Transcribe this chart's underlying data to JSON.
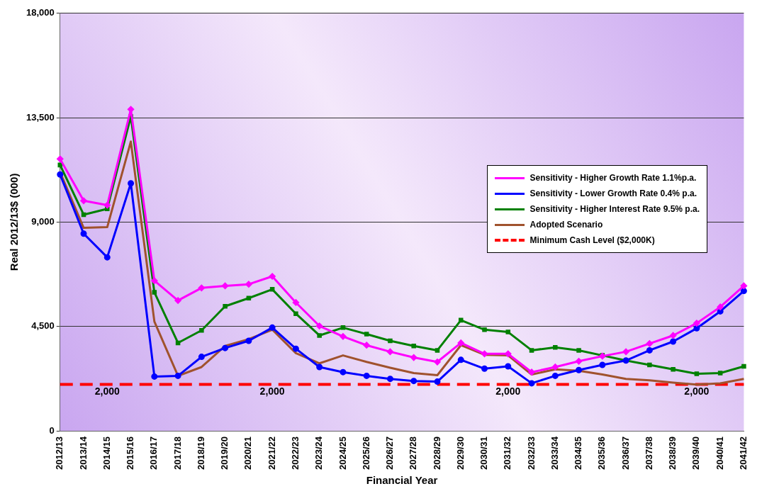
{
  "chart_data": {
    "type": "line",
    "xlabel": "Financial Year",
    "ylabel": "Real 2012/13$ (000)",
    "categories": [
      "2012/13",
      "2013/14",
      "2014/15",
      "2015/16",
      "2016/17",
      "2017/18",
      "2018/19",
      "2019/20",
      "2020/21",
      "2021/22",
      "2022/23",
      "2023/24",
      "2024/25",
      "2025/26",
      "2026/27",
      "2027/28",
      "2028/29",
      "2029/30",
      "2030/31",
      "2031/32",
      "2032/33",
      "2033/34",
      "2034/35",
      "2035/36",
      "2036/37",
      "2037/38",
      "2038/39",
      "2039/40",
      "2040/41",
      "2041/42"
    ],
    "series": [
      {
        "name": "Sensitivity - Higher Growth Rate 1.1%p.a.",
        "color": "#ff00ff",
        "marker": "diamond",
        "values": [
          11720,
          9920,
          9730,
          13860,
          6470,
          5620,
          6160,
          6250,
          6320,
          6660,
          5530,
          4520,
          4070,
          3690,
          3410,
          3160,
          2970,
          3790,
          3320,
          3320,
          2530,
          2750,
          3000,
          3220,
          3410,
          3760,
          4110,
          4640,
          5340,
          6250
        ]
      },
      {
        "name": "Sensitivity - Lower Growth Rate 0.4% p.a.",
        "color": "#0000ff",
        "marker": "circle",
        "values": [
          11050,
          8500,
          7480,
          10670,
          2340,
          2370,
          3190,
          3570,
          3880,
          4450,
          3540,
          2750,
          2530,
          2370,
          2240,
          2150,
          2120,
          3060,
          2680,
          2780,
          2050,
          2370,
          2620,
          2840,
          3030,
          3470,
          3850,
          4420,
          5150,
          6030
        ]
      },
      {
        "name": "Sensitivity - Higher Interest Rate 9.5% p.a.",
        "color": "#008000",
        "marker": "square",
        "values": [
          11460,
          9320,
          9570,
          13550,
          5970,
          3790,
          4330,
          5370,
          5720,
          6100,
          5050,
          4110,
          4450,
          4170,
          3880,
          3660,
          3470,
          4770,
          4360,
          4260,
          3470,
          3600,
          3470,
          3250,
          3030,
          2840,
          2650,
          2460,
          2490,
          2780
        ]
      },
      {
        "name": "Adopted Scenario",
        "color": "#a0522d",
        "marker": "none",
        "values": [
          11150,
          8750,
          8780,
          12470,
          4710,
          2370,
          2750,
          3660,
          3950,
          4360,
          3350,
          2910,
          3250,
          2970,
          2720,
          2490,
          2400,
          3690,
          3280,
          3250,
          2430,
          2650,
          2590,
          2430,
          2240,
          2180,
          2080,
          1990,
          2050,
          2240
        ]
      },
      {
        "name": "Minimum Cash Level ($2,000K)",
        "color": "#ff0000",
        "marker": "none",
        "line_style": "dashed",
        "values": [
          2000,
          2000,
          2000,
          2000,
          2000,
          2000,
          2000,
          2000,
          2000,
          2000,
          2000,
          2000,
          2000,
          2000,
          2000,
          2000,
          2000,
          2000,
          2000,
          2000,
          2000,
          2000,
          2000,
          2000,
          2000,
          2000,
          2000,
          2000,
          2000,
          2000
        ]
      }
    ],
    "ylim": [
      0,
      18000
    ],
    "yticks": [
      0,
      {
        "value": 4500,
        "label": "4,500"
      },
      {
        "value": 9000,
        "label": "9,000"
      },
      {
        "value": 13500,
        "label": "13,500"
      },
      {
        "value": 18000,
        "label": "18,000"
      }
    ],
    "grid": "y",
    "legend": "right",
    "annotations": [
      {
        "text": "2,000",
        "x": "2014/15",
        "y": 2000
      },
      {
        "text": "2,000",
        "x": "2021/22",
        "y": 2000
      },
      {
        "text": "2,000",
        "x": "2031/32",
        "y": 2000
      },
      {
        "text": "2,000",
        "x": "2039/40",
        "y": 2000
      }
    ]
  }
}
